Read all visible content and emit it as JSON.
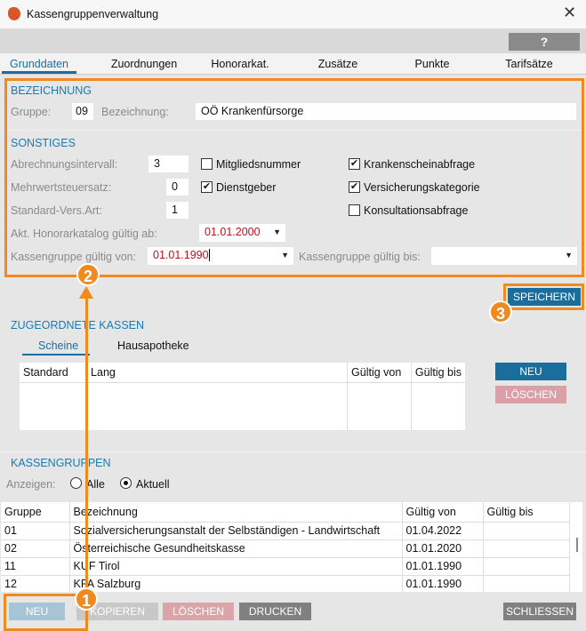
{
  "window": {
    "title": "Kassengruppenverwaltung",
    "close_icon": "close-icon"
  },
  "toolbar": {
    "help_label": "?"
  },
  "tabs": [
    "Grunddaten",
    "Zuordnungen",
    "Honorarkat.",
    "Zusätze",
    "Punkte",
    "Tarifsätze"
  ],
  "bezeichnung": {
    "heading": "BEZEICHNUNG",
    "gruppe_label": "Gruppe:",
    "gruppe_value": "09",
    "bez_label": "Bezeichnung:",
    "bez_value": "OÖ Krankenfürsorge"
  },
  "sonstiges": {
    "heading": "SONSTIGES",
    "abrechnung_label": "Abrechnungsintervall:",
    "abrechnung_value": "3",
    "mwst_label": "Mehrwertsteuersatz:",
    "mwst_value": "0",
    "versart_label": "Standard-Vers.Art:",
    "versart_value": "1",
    "honorar_label": "Akt. Honorarkatalog gültig ab:",
    "honorar_value": "01.01.2000",
    "von_label": "Kassengruppe gültig von:",
    "von_value": "01.01.1990",
    "bis_label": "Kassengruppe gültig bis:",
    "bis_value": "",
    "checkboxes": [
      {
        "label": "Mitgliedsnummer",
        "checked": false
      },
      {
        "label": "Dienstgeber",
        "checked": true
      },
      {
        "label": "Krankenscheinabfrage",
        "checked": true
      },
      {
        "label": "Versicherungskategorie",
        "checked": true
      },
      {
        "label": "Konsultationsabfrage",
        "checked": false
      }
    ]
  },
  "save_label": "SPEICHERN",
  "zugeordnete": {
    "heading": "ZUGEORDNETE KASSEN",
    "tabs": [
      "Scheine",
      "Hausapotheke"
    ],
    "columns": [
      "Standard",
      "Lang",
      "Gültig von",
      "Gültig bis"
    ],
    "new_label": "NEU",
    "delete_label": "LÖSCHEN"
  },
  "kassengruppen": {
    "heading": "KASSENGRUPPEN",
    "anzeigen_label": "Anzeigen:",
    "radio_alle": "Alle",
    "radio_aktuell": "Aktuell",
    "selected": "Aktuell",
    "columns": [
      "Gruppe",
      "Bezeichnung",
      "Gültig von",
      "Gültig bis"
    ],
    "rows": [
      [
        "01",
        "Sozialversicherungsanstalt der Selbständigen - Landwirtschaft",
        "01.04.2022",
        ""
      ],
      [
        "02",
        "Österreichische Gesundheitskasse",
        "01.01.2020",
        ""
      ],
      [
        "11",
        "KUF Tirol",
        "01.01.1990",
        ""
      ],
      [
        "12",
        "KFA Salzburg",
        "01.01.1990",
        ""
      ]
    ]
  },
  "footer": {
    "new": "NEU",
    "copy": "KOPIEREN",
    "delete": "LÖSCHEN",
    "print": "DRUCKEN",
    "close": "SCHLIESSEN"
  },
  "markers": [
    "1",
    "2",
    "3"
  ],
  "colors": {
    "accent": "#1a6e9e",
    "highlight": "#f08a1e",
    "delete": "#d9a5a8",
    "neutral": "#808080"
  }
}
